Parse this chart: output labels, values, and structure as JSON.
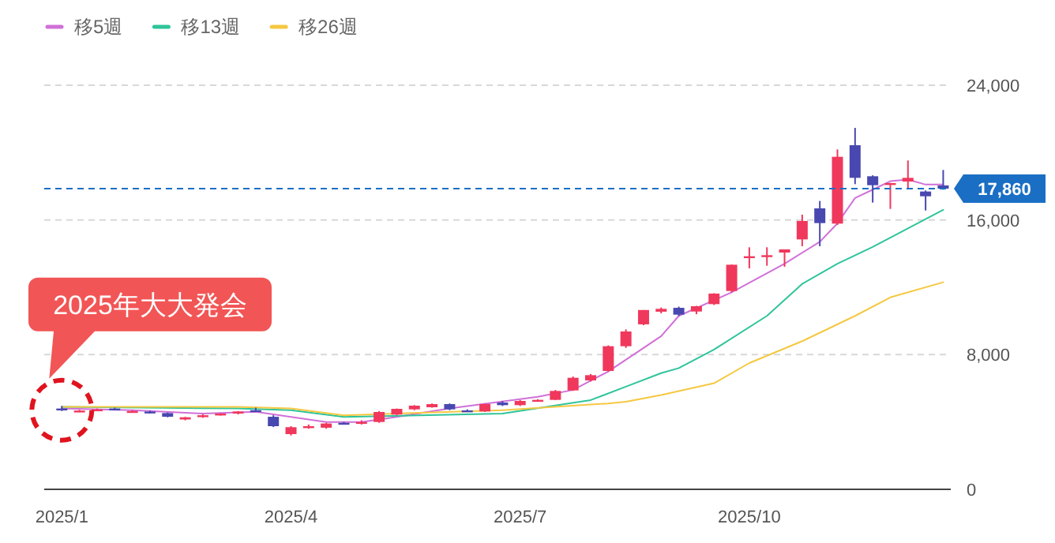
{
  "chart_data": {
    "type": "candlestick",
    "x": [
      "2025-01-06",
      "2025-01-13",
      "2025-01-20",
      "2025-01-27",
      "2025-02-03",
      "2025-02-10",
      "2025-02-17",
      "2025-02-24",
      "2025-03-03",
      "2025-03-10",
      "2025-03-17",
      "2025-03-24",
      "2025-03-31",
      "2025-04-07",
      "2025-04-14",
      "2025-04-21",
      "2025-04-28",
      "2025-05-05",
      "2025-05-12",
      "2025-05-19",
      "2025-05-26",
      "2025-06-02",
      "2025-06-09",
      "2025-06-16",
      "2025-06-23",
      "2025-06-30",
      "2025-07-07",
      "2025-07-14",
      "2025-07-21",
      "2025-07-28",
      "2025-08-04",
      "2025-08-11",
      "2025-08-18",
      "2025-08-25",
      "2025-09-01",
      "2025-09-08",
      "2025-09-15",
      "2025-09-22",
      "2025-09-29",
      "2025-10-06",
      "2025-10-13",
      "2025-10-20",
      "2025-10-27",
      "2025-11-03",
      "2025-11-10",
      "2025-11-17",
      "2025-11-24",
      "2025-12-01",
      "2025-12-08",
      "2025-12-15",
      "2025-12-22"
    ],
    "ohlc": [
      [
        4800,
        4950,
        4650,
        4700
      ],
      [
        4620,
        4720,
        4580,
        4680
      ],
      [
        4700,
        4800,
        4650,
        4750
      ],
      [
        4800,
        4850,
        4700,
        4720
      ],
      [
        4600,
        4700,
        4550,
        4650
      ],
      [
        4620,
        4680,
        4500,
        4560
      ],
      [
        4530,
        4560,
        4280,
        4310
      ],
      [
        4150,
        4300,
        4100,
        4280
      ],
      [
        4330,
        4450,
        4250,
        4400
      ],
      [
        4420,
        4520,
        4380,
        4500
      ],
      [
        4500,
        4650,
        4450,
        4620
      ],
      [
        4700,
        4850,
        4600,
        4650
      ],
      [
        4310,
        4400,
        3700,
        3750
      ],
      [
        3280,
        3750,
        3200,
        3690
      ],
      [
        3700,
        3850,
        3600,
        3750
      ],
      [
        3660,
        3950,
        3600,
        3910
      ],
      [
        3950,
        4000,
        3850,
        3900
      ],
      [
        3900,
        4100,
        3850,
        4000
      ],
      [
        4000,
        4650,
        3950,
        4594
      ],
      [
        4437,
        4800,
        4400,
        4781
      ],
      [
        4750,
        5000,
        4700,
        4969
      ],
      [
        4875,
        5100,
        4850,
        5063
      ],
      [
        5063,
        5100,
        4700,
        4750
      ],
      [
        4688,
        4750,
        4600,
        4625
      ],
      [
        4625,
        5100,
        4600,
        5063
      ],
      [
        5156,
        5250,
        4950,
        5000
      ],
      [
        5000,
        5300,
        4950,
        5250
      ],
      [
        5250,
        5350,
        5200,
        5313
      ],
      [
        5313,
        5900,
        5300,
        5844
      ],
      [
        5875,
        6700,
        5850,
        6625
      ],
      [
        6469,
        6850,
        6400,
        6781
      ],
      [
        7031,
        8550,
        7000,
        8500
      ],
      [
        8500,
        9500,
        8400,
        9375
      ],
      [
        9800,
        10650,
        9750,
        10650
      ],
      [
        10550,
        10800,
        10450,
        10720
      ],
      [
        10780,
        10850,
        10300,
        10375
      ],
      [
        10560,
        10900,
        10400,
        10875
      ],
      [
        11000,
        11650,
        10950,
        11625
      ],
      [
        11780,
        13350,
        11700,
        13340
      ],
      [
        13800,
        14375,
        13125,
        13844
      ],
      [
        13850,
        14375,
        13281,
        13906
      ],
      [
        14063,
        14250,
        13219,
        14250
      ],
      [
        14844,
        16313,
        14438,
        15938
      ],
      [
        16688,
        17125,
        14438,
        15813
      ],
      [
        15781,
        20188,
        15700,
        19750
      ],
      [
        20438,
        21469,
        18125,
        18500
      ],
      [
        18594,
        18650,
        17031,
        18063
      ],
      [
        18150,
        18200,
        16656,
        18188
      ],
      [
        18281,
        19531,
        17813,
        18500
      ],
      [
        17688,
        17750,
        16563,
        17406
      ],
      [
        18050,
        18969,
        17800,
        17860
      ]
    ],
    "colors": [
      "#4848b0",
      "#f0385c",
      "#f0385c",
      "#4848b0",
      "#f0385c",
      "#4848b0",
      "#4848b0",
      "#f0385c",
      "#f0385c",
      "#f0385c",
      "#f0385c",
      "#4848b0",
      "#4848b0",
      "#f0385c",
      "#f0385c",
      "#f0385c",
      "#4848b0",
      "#f0385c",
      "#f0385c",
      "#f0385c",
      "#f0385c",
      "#f0385c",
      "#4848b0",
      "#4848b0",
      "#f0385c",
      "#4848b0",
      "#f0385c",
      "#f0385c",
      "#f0385c",
      "#f0385c",
      "#f0385c",
      "#f0385c",
      "#f0385c",
      "#f0385c",
      "#f0385c",
      "#4848b0",
      "#f0385c",
      "#f0385c",
      "#f0385c",
      "#f0385c",
      "#f0385c",
      "#f0385c",
      "#f0385c",
      "#4848b0",
      "#f0385c",
      "#4848b0",
      "#4848b0",
      "#f0385c",
      "#f0385c",
      "#4848b0",
      "#4848b0"
    ],
    "series": [
      {
        "type": "line",
        "name": "移5週",
        "color": "#d070d8",
        "x": [
          "2025-01-06",
          "2025-02-03",
          "2025-03-03",
          "2025-03-24",
          "2025-04-07",
          "2025-04-21",
          "2025-05-05",
          "2025-05-19",
          "2025-06-09",
          "2025-07-14",
          "2025-07-28",
          "2025-08-11",
          "2025-08-25",
          "2025-09-01",
          "2025-09-08",
          "2025-09-29",
          "2025-10-20",
          "2025-11-03",
          "2025-11-10",
          "2025-11-17",
          "2025-11-24",
          "2025-12-01",
          "2025-12-08",
          "2025-12-15",
          "2025-12-22"
        ],
        "values": [
          4800,
          4700,
          4500,
          4600,
          4300,
          4000,
          4000,
          4300,
          4800,
          5500,
          5900,
          7000,
          8400,
          9100,
          10300,
          11700,
          13400,
          14700,
          15800,
          17300,
          17800,
          18300,
          18400,
          18100,
          18100
        ]
      },
      {
        "type": "line",
        "name": "移13週",
        "color": "#2ec49a",
        "x": [
          "2025-01-06",
          "2025-03-17",
          "2025-04-07",
          "2025-04-28",
          "2025-06-30",
          "2025-08-04",
          "2025-08-18",
          "2025-09-01",
          "2025-09-08",
          "2025-09-22",
          "2025-10-13",
          "2025-10-27",
          "2025-11-10",
          "2025-11-24",
          "2025-12-08",
          "2025-12-22"
        ],
        "values": [
          4900,
          4800,
          4700,
          4300,
          4500,
          5300,
          6100,
          6900,
          7200,
          8300,
          10300,
          12200,
          13400,
          14400,
          15500,
          16600
        ]
      },
      {
        "type": "line",
        "name": "移26週",
        "color": "#f5c842",
        "x": [
          "2025-01-06",
          "2025-03-17",
          "2025-04-07",
          "2025-04-28",
          "2025-06-30",
          "2025-08-11",
          "2025-08-18",
          "2025-09-01",
          "2025-09-22",
          "2025-10-06",
          "2025-10-27",
          "2025-11-17",
          "2025-12-01",
          "2025-12-22"
        ],
        "values": [
          4900,
          4900,
          4800,
          4400,
          4700,
          5100,
          5200,
          5600,
          6300,
          7500,
          8800,
          10300,
          11400,
          12300
        ]
      }
    ],
    "xlim": [
      "2024-12-30",
      "2025-12-25"
    ],
    "xticks": [
      {
        "value": "2025-01-06",
        "label": "2025/1"
      },
      {
        "value": "2025-04-07",
        "label": "2025/4"
      },
      {
        "value": "2025-07-07",
        "label": "2025/7"
      },
      {
        "value": "2025-10-06",
        "label": "2025/10"
      }
    ],
    "ylim": [
      0,
      24000
    ],
    "yticks": [
      0,
      {
        "value": 8000,
        "label": "8,000"
      },
      {
        "value": 16000,
        "label": "16,000"
      },
      {
        "value": 24000,
        "label": "24,000"
      }
    ],
    "grid": "y",
    "legend": "top left",
    "ref_lines": [
      {
        "axis": "y",
        "value": 17860,
        "label": "17,860",
        "color": "#1a6fc4",
        "line_style": "dashed"
      }
    ],
    "annotations": [
      "2025年大大発会"
    ]
  }
}
